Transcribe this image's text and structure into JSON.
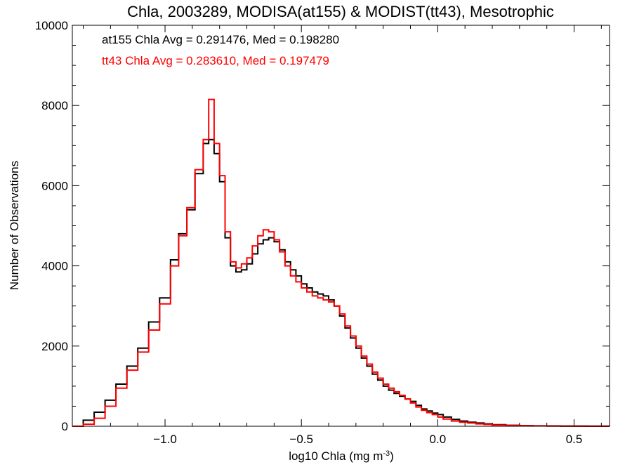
{
  "chart_data": {
    "type": "line",
    "title": "Chla, 2003289, MODISA(at155) & MODIST(tt43), Mesotrophic",
    "xlabel": "log10 Chla (mg m",
    "xlabel_sup": "-3",
    "xlabel_close": ")",
    "ylabel": "Number of Observations",
    "xlim": [
      -1.34,
      0.63
    ],
    "ylim": [
      0,
      10000
    ],
    "x_ticks": [
      -1.0,
      -0.5,
      0.0,
      0.5
    ],
    "x_tick_labels": [
      "−1.0",
      "−0.5",
      "0.0",
      "0.5"
    ],
    "y_ticks": [
      0,
      2000,
      4000,
      6000,
      8000,
      10000
    ],
    "y_tick_labels": [
      "0",
      "2000",
      "4000",
      "6000",
      "8000",
      "10000"
    ],
    "grid": false,
    "step": true,
    "annotations": [
      {
        "text": "at155 Chla Avg = 0.291476, Med = 0.198280",
        "color": "#000000"
      },
      {
        "text": "tt43 Chla Avg = 0.283610, Med = 0.197479",
        "color": "#ff0000"
      }
    ],
    "x": [
      -1.34,
      -1.3,
      -1.26,
      -1.22,
      -1.18,
      -1.14,
      -1.1,
      -1.06,
      -1.02,
      -0.98,
      -0.95,
      -0.92,
      -0.89,
      -0.86,
      -0.84,
      -0.82,
      -0.8,
      -0.78,
      -0.76,
      -0.74,
      -0.72,
      -0.7,
      -0.68,
      -0.66,
      -0.64,
      -0.62,
      -0.6,
      -0.58,
      -0.56,
      -0.54,
      -0.52,
      -0.5,
      -0.48,
      -0.46,
      -0.44,
      -0.42,
      -0.4,
      -0.38,
      -0.36,
      -0.34,
      -0.32,
      -0.3,
      -0.28,
      -0.26,
      -0.24,
      -0.22,
      -0.2,
      -0.18,
      -0.16,
      -0.14,
      -0.12,
      -0.1,
      -0.08,
      -0.06,
      -0.04,
      -0.02,
      0.0,
      0.02,
      0.05,
      0.08,
      0.11,
      0.14,
      0.17,
      0.2,
      0.25,
      0.3,
      0.35,
      0.4,
      0.45,
      0.5,
      0.55,
      0.63
    ],
    "series": [
      {
        "name": "at155",
        "color": "#000000",
        "values": [
          0,
          150,
          350,
          650,
          1050,
          1500,
          1950,
          2600,
          3200,
          4150,
          4800,
          5400,
          6300,
          7050,
          7150,
          6800,
          6100,
          4700,
          4000,
          3850,
          3900,
          4050,
          4300,
          4550,
          4650,
          4700,
          4600,
          4400,
          4100,
          3900,
          3750,
          3550,
          3450,
          3350,
          3300,
          3250,
          3150,
          3000,
          2750,
          2450,
          2200,
          1950,
          1700,
          1500,
          1300,
          1150,
          1000,
          900,
          820,
          750,
          680,
          620,
          520,
          430,
          380,
          330,
          290,
          230,
          170,
          130,
          100,
          80,
          60,
          40,
          25,
          15,
          10,
          8,
          5,
          3,
          2,
          0
        ]
      },
      {
        "name": "tt43",
        "color": "#ff0000",
        "values": [
          0,
          50,
          200,
          500,
          950,
          1400,
          1850,
          2400,
          3050,
          4000,
          4750,
          5450,
          6400,
          7150,
          8150,
          7050,
          6250,
          4850,
          4100,
          3950,
          4050,
          4200,
          4500,
          4750,
          4900,
          4850,
          4650,
          4350,
          4000,
          3750,
          3600,
          3450,
          3350,
          3250,
          3200,
          3150,
          3100,
          3000,
          2800,
          2500,
          2250,
          2000,
          1750,
          1550,
          1350,
          1200,
          1050,
          950,
          860,
          770,
          680,
          580,
          480,
          400,
          340,
          290,
          230,
          180,
          130,
          100,
          80,
          60,
          45,
          30,
          20,
          12,
          8,
          5,
          3,
          2,
          1,
          0
        ]
      }
    ]
  }
}
